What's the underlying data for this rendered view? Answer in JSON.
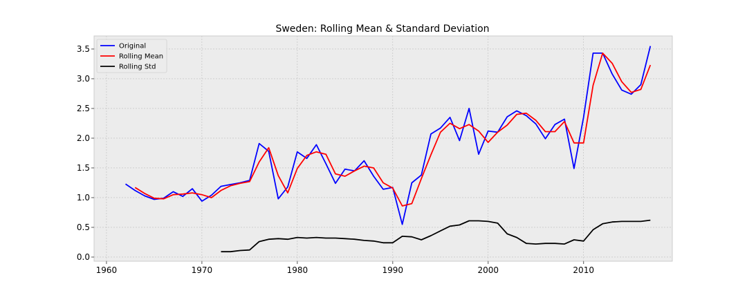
{
  "chart_data": {
    "type": "line",
    "title": "Sweden: Rolling Mean & Standard Deviation",
    "xlabel": "",
    "ylabel": "",
    "xlim": [
      1958.7,
      2019.3
    ],
    "ylim": [
      -0.07,
      3.72
    ],
    "xticks": [
      1960,
      1970,
      1980,
      1990,
      2000,
      2010
    ],
    "xtick_labels": [
      "1960",
      "1970",
      "1980",
      "1990",
      "2000",
      "2010"
    ],
    "yticks": [
      0.0,
      0.5,
      1.0,
      1.5,
      2.0,
      2.5,
      3.0,
      3.5
    ],
    "ytick_labels": [
      "0.0",
      "0.5",
      "1.0",
      "1.5",
      "2.0",
      "2.5",
      "3.0",
      "3.5"
    ],
    "grid": true,
    "legend_position": "top-left",
    "background_color": "#ececec",
    "series": [
      {
        "name": "Original",
        "color": "#0000ff",
        "x": [
          1962,
          1963,
          1964,
          1965,
          1966,
          1967,
          1968,
          1969,
          1970,
          1971,
          1972,
          1973,
          1974,
          1975,
          1976,
          1977,
          1978,
          1979,
          1980,
          1981,
          1982,
          1983,
          1984,
          1985,
          1986,
          1987,
          1988,
          1989,
          1990,
          1991,
          1992,
          1993,
          1994,
          1995,
          1996,
          1997,
          1998,
          1999,
          2000,
          2001,
          2002,
          2003,
          2004,
          2005,
          2006,
          2007,
          2008,
          2009,
          2010,
          2011,
          2012,
          2013,
          2014,
          2015,
          2016,
          2017
        ],
        "values": [
          1.23,
          1.12,
          1.03,
          0.97,
          0.99,
          1.1,
          1.02,
          1.15,
          0.94,
          1.04,
          1.19,
          1.22,
          1.25,
          1.29,
          1.91,
          1.78,
          0.98,
          1.18,
          1.77,
          1.66,
          1.89,
          1.57,
          1.24,
          1.48,
          1.45,
          1.62,
          1.36,
          1.14,
          1.17,
          0.55,
          1.25,
          1.38,
          2.07,
          2.17,
          2.35,
          1.96,
          2.5,
          1.73,
          2.12,
          2.1,
          2.36,
          2.46,
          2.38,
          2.24,
          1.99,
          2.23,
          2.32,
          1.49,
          2.35,
          3.43,
          3.43,
          3.08,
          2.81,
          2.74,
          2.9,
          3.55
        ]
      },
      {
        "name": "Rolling Mean",
        "color": "#ff0000",
        "x": [
          1963,
          1964,
          1965,
          1966,
          1967,
          1968,
          1969,
          1970,
          1971,
          1972,
          1973,
          1974,
          1975,
          1976,
          1977,
          1978,
          1979,
          1980,
          1981,
          1982,
          1983,
          1984,
          1985,
          1986,
          1987,
          1988,
          1989,
          1990,
          1991,
          1992,
          1993,
          1994,
          1995,
          1996,
          1997,
          1998,
          1999,
          2000,
          2001,
          2002,
          2003,
          2004,
          2005,
          2006,
          2007,
          2008,
          2009,
          2010,
          2011,
          2012,
          2013,
          2014,
          2015,
          2016,
          2017
        ],
        "values": [
          1.17,
          1.07,
          0.99,
          0.98,
          1.05,
          1.06,
          1.08,
          1.05,
          1.0,
          1.12,
          1.2,
          1.24,
          1.27,
          1.6,
          1.84,
          1.37,
          1.08,
          1.49,
          1.71,
          1.77,
          1.73,
          1.4,
          1.36,
          1.45,
          1.53,
          1.5,
          1.25,
          1.16,
          0.86,
          0.9,
          1.32,
          1.72,
          2.1,
          2.25,
          2.16,
          2.23,
          2.12,
          1.93,
          2.1,
          2.22,
          2.4,
          2.42,
          2.3,
          2.11,
          2.11,
          2.28,
          1.92,
          1.92,
          2.89,
          3.43,
          3.26,
          2.95,
          2.77,
          2.82,
          3.23
        ]
      },
      {
        "name": "Rolling Std",
        "color": "#000000",
        "x": [
          1972,
          1973,
          1974,
          1975,
          1976,
          1977,
          1978,
          1979,
          1980,
          1981,
          1982,
          1983,
          1984,
          1985,
          1986,
          1987,
          1988,
          1989,
          1990,
          1991,
          1992,
          1993,
          1994,
          1995,
          1996,
          1997,
          1998,
          1999,
          2000,
          2001,
          2002,
          2003,
          2004,
          2005,
          2006,
          2007,
          2008,
          2009,
          2010,
          2011,
          2012,
          2013,
          2014,
          2015,
          2016,
          2017
        ],
        "values": [
          0.09,
          0.09,
          0.11,
          0.12,
          0.26,
          0.3,
          0.31,
          0.3,
          0.33,
          0.32,
          0.33,
          0.32,
          0.32,
          0.31,
          0.3,
          0.28,
          0.27,
          0.24,
          0.24,
          0.35,
          0.34,
          0.29,
          0.36,
          0.44,
          0.52,
          0.54,
          0.61,
          0.61,
          0.6,
          0.57,
          0.39,
          0.33,
          0.23,
          0.22,
          0.23,
          0.23,
          0.22,
          0.29,
          0.27,
          0.46,
          0.56,
          0.59,
          0.6,
          0.6,
          0.6,
          0.62
        ]
      }
    ]
  }
}
